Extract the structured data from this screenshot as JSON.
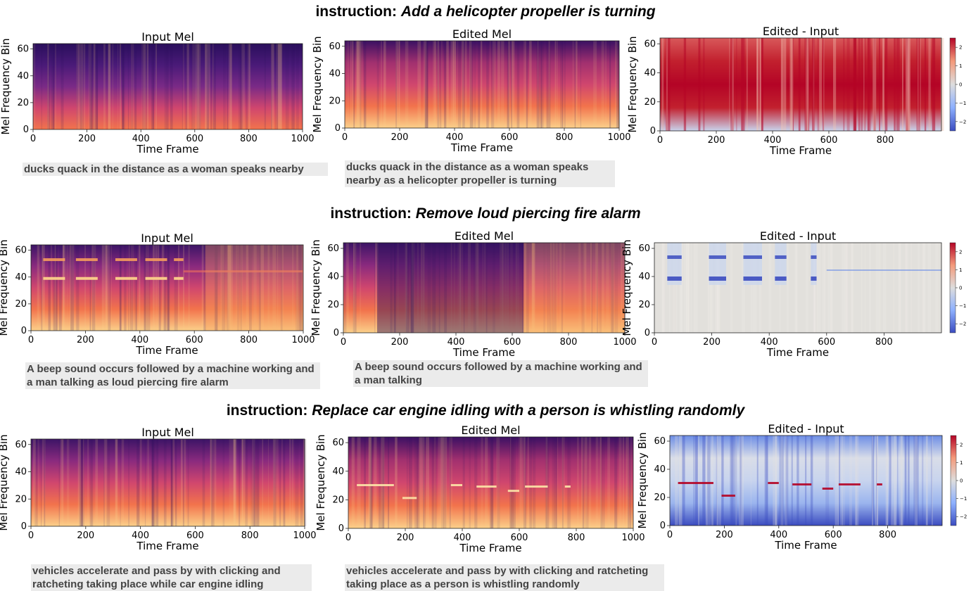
{
  "rows": [
    {
      "instruction_prefix": "instruction:",
      "instruction_text": "Add a helicopter propeller is turning",
      "input_caption": "ducks quack in the distance as a woman speaks nearby",
      "edited_caption": "ducks quack in the distance as a woman speaks nearby as a helicopter propeller is turning"
    },
    {
      "instruction_prefix": "instruction:",
      "instruction_text": "Remove loud piercing fire alarm",
      "input_caption": "A beep sound occurs followed by a machine working and a man talking as loud piercing fire alarm",
      "edited_caption": "A beep sound occurs followed by a machine working and a man talking"
    },
    {
      "instruction_prefix": "instruction:",
      "instruction_text": "Replace car engine idling with a person is whistling randomly",
      "input_caption": "vehicles accelerate and pass by with clicking and ratcheting taking place while car engine idling",
      "edited_caption": "vehicles accelerate and pass by with clicking and ratcheting taking place as a person is whistling randomly"
    }
  ],
  "colors": {
    "magma_low": "#2a0f5c",
    "magma_mid": "#d0466e",
    "magma_high": "#fbd08a",
    "diff_negative": "#3b4cc0",
    "diff_zero": "#dddddd",
    "diff_positive": "#b40426"
  },
  "chart_data": [
    {
      "type": "heatmap",
      "row": 0,
      "title": "Input Mel",
      "xlabel": "Time Frame",
      "ylabel": "Mel Frequency Bin",
      "xlim": [
        0,
        1000
      ],
      "ylim": [
        0,
        64
      ],
      "xticks": [
        0,
        200,
        400,
        600,
        800,
        1000
      ],
      "yticks": [
        0,
        20,
        40,
        60
      ],
      "colormap": "magma"
    },
    {
      "type": "heatmap",
      "row": 0,
      "title": "Edited Mel",
      "xlabel": "Time Frame",
      "ylabel": "Mel Frequency Bin",
      "xlim": [
        0,
        1000
      ],
      "ylim": [
        0,
        64
      ],
      "xticks": [
        0,
        200,
        400,
        600,
        800,
        1000
      ],
      "yticks": [
        0,
        20,
        40,
        60
      ],
      "colormap": "magma"
    },
    {
      "type": "heatmap",
      "row": 0,
      "title": "Edited - Input",
      "xlabel": "Time Frame",
      "ylabel": "Mel Frequency Bin",
      "xlim": [
        0,
        1000
      ],
      "ylim": [
        0,
        64
      ],
      "xticks": [
        0,
        200,
        400,
        600,
        800
      ],
      "yticks": [
        0,
        20,
        40,
        60
      ],
      "colormap": "coolwarm",
      "colorbar_ticks": [
        2,
        1,
        0,
        -1,
        -2
      ],
      "colorbar_range": [
        -2.5,
        2.5
      ]
    },
    {
      "type": "heatmap",
      "row": 1,
      "title": "Input Mel",
      "xlabel": "Time Frame",
      "ylabel": "Mel Frequency Bin",
      "xlim": [
        0,
        1000
      ],
      "ylim": [
        0,
        64
      ],
      "xticks": [
        0,
        200,
        400,
        600,
        800,
        1000
      ],
      "yticks": [
        0,
        20,
        40,
        60
      ],
      "colormap": "magma"
    },
    {
      "type": "heatmap",
      "row": 1,
      "title": "Edited Mel",
      "xlabel": "Time Frame",
      "ylabel": "Mel Frequency Bin",
      "xlim": [
        0,
        1000
      ],
      "ylim": [
        0,
        64
      ],
      "xticks": [
        0,
        200,
        400,
        600,
        800,
        1000
      ],
      "yticks": [
        0,
        20,
        40,
        60
      ],
      "colormap": "magma"
    },
    {
      "type": "heatmap",
      "row": 1,
      "title": "Edited - Input",
      "xlabel": "Time Frame",
      "ylabel": "Mel Frequency Bin",
      "xlim": [
        0,
        1000
      ],
      "ylim": [
        0,
        64
      ],
      "xticks": [
        0,
        200,
        400,
        600,
        800
      ],
      "yticks": [
        0,
        20,
        40,
        60
      ],
      "colormap": "coolwarm",
      "colorbar_ticks": [
        2,
        1,
        0,
        -1,
        -2
      ],
      "colorbar_range": [
        -2.5,
        2.5
      ]
    },
    {
      "type": "heatmap",
      "row": 2,
      "title": "Input Mel",
      "xlabel": "Time Frame",
      "ylabel": "Mel Frequency Bin",
      "xlim": [
        0,
        1000
      ],
      "ylim": [
        0,
        64
      ],
      "xticks": [
        0,
        200,
        400,
        600,
        800,
        1000
      ],
      "yticks": [
        0,
        20,
        40,
        60
      ],
      "colormap": "magma"
    },
    {
      "type": "heatmap",
      "row": 2,
      "title": "Edited Mel",
      "xlabel": "Time Frame",
      "ylabel": "Mel Frequency Bin",
      "xlim": [
        0,
        1000
      ],
      "ylim": [
        0,
        64
      ],
      "xticks": [
        0,
        200,
        400,
        600,
        800,
        1000
      ],
      "yticks": [
        0,
        20,
        40,
        60
      ],
      "colormap": "magma"
    },
    {
      "type": "heatmap",
      "row": 2,
      "title": "Edited - Input",
      "xlabel": "Time Frame",
      "ylabel": "Mel Frequency Bin",
      "xlim": [
        0,
        1000
      ],
      "ylim": [
        0,
        64
      ],
      "xticks": [
        0,
        200,
        400,
        600,
        800
      ],
      "yticks": [
        0,
        20,
        40,
        60
      ],
      "colormap": "coolwarm",
      "colorbar_ticks": [
        2,
        1,
        0,
        -1,
        -2
      ],
      "colorbar_range": [
        -2.5,
        2.5
      ]
    }
  ]
}
